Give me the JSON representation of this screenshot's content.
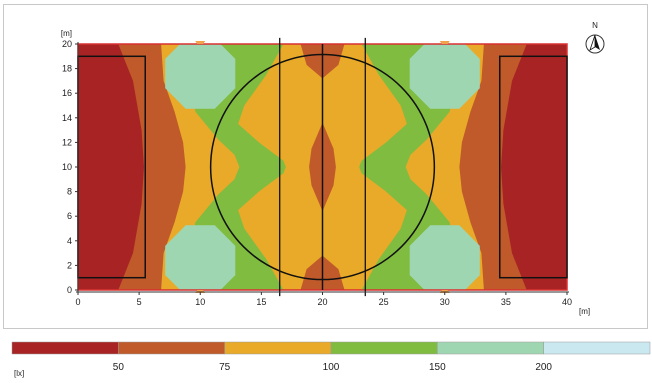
{
  "chart_data": {
    "type": "heatmap",
    "x_unit": "[m]",
    "y_unit": "[m]",
    "xlim": [
      0,
      40
    ],
    "ylim": [
      0,
      20
    ],
    "x_ticks": [
      0,
      5,
      10,
      15,
      20,
      25,
      30,
      35,
      40
    ],
    "y_ticks": [
      0,
      2,
      4,
      6,
      8,
      10,
      12,
      14,
      16,
      18,
      20
    ],
    "north_label": "N",
    "legend": {
      "unit": "[lx]",
      "levels": [
        {
          "label": "",
          "color": "#a82424"
        },
        {
          "label": "50",
          "color": "#c05a2a"
        },
        {
          "label": "75",
          "color": "#e8aa28"
        },
        {
          "label": "100",
          "color": "#80bc40"
        },
        {
          "label": "150",
          "color": "#9fd6b2"
        },
        {
          "label": "200",
          "color": "#cae8f0"
        }
      ]
    },
    "contours": [
      {
        "level": "<50",
        "color": "#a82424",
        "region": "outer bands near x=0 and x=40"
      },
      {
        "level": "50-75",
        "color": "#c05a2a",
        "region": "x≈3-5 and x≈35-37; center spot x≈19.5-20.5, y≈7-13"
      },
      {
        "level": "75-100",
        "color": "#e8aa28",
        "region": "x≈5-7, center x≈13-27"
      },
      {
        "level": "100-150",
        "color": "#80bc40",
        "region": "main field"
      },
      {
        "level": "150-200",
        "color": "#9fd6b2",
        "region": "spots near (10,17.5), (10,2.5), (30,17.5), (30,2.5)"
      }
    ],
    "field_lines": {
      "halfway_x": 20,
      "lines_x": [
        16.5,
        23.5
      ],
      "center_circle": {
        "cx": 20,
        "cy": 10,
        "r": 9.15
      },
      "penalty_boxes": [
        {
          "x": [
            0,
            5.5
          ],
          "y": [
            1,
            19
          ]
        },
        {
          "x": [
            34.5,
            40
          ],
          "y": [
            1,
            19
          ]
        }
      ]
    },
    "luminaires_x": [
      10,
      30
    ]
  }
}
